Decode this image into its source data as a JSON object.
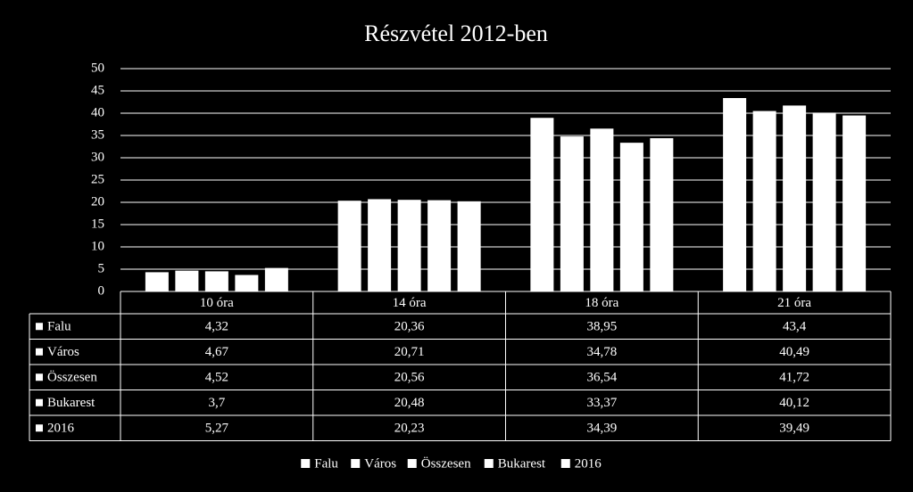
{
  "chart_data": {
    "type": "bar",
    "title": "Részvétel 2012-ben",
    "categories": [
      "10 óra",
      "14 óra",
      "18 óra",
      "21 óra"
    ],
    "series": [
      {
        "name": "Falu",
        "color": "#ffffff",
        "values": [
          4.32,
          20.36,
          38.95,
          43.4
        ],
        "value_labels": [
          "4,32",
          "20,36",
          "38,95",
          "43,4"
        ]
      },
      {
        "name": "Város",
        "color": "#ffffff",
        "values": [
          4.67,
          20.71,
          34.78,
          40.49
        ],
        "value_labels": [
          "4,67",
          "20,71",
          "34,78",
          "40,49"
        ]
      },
      {
        "name": "Összesen",
        "color": "#ffffff",
        "values": [
          4.52,
          20.56,
          36.54,
          41.72
        ],
        "value_labels": [
          "4,52",
          "20,56",
          "36,54",
          "41,72"
        ]
      },
      {
        "name": "Bukarest",
        "color": "#ffffff",
        "values": [
          3.7,
          20.48,
          33.37,
          40.12
        ],
        "value_labels": [
          "3,7",
          "20,48",
          "33,37",
          "40,12"
        ]
      },
      {
        "name": "2016",
        "color": "#ffffff",
        "values": [
          5.27,
          20.23,
          34.39,
          39.49
        ],
        "value_labels": [
          "5,27",
          "20,23",
          "34,39",
          "39,49"
        ]
      }
    ],
    "ylim": [
      0,
      50
    ],
    "yticks": [
      0,
      5,
      10,
      15,
      20,
      25,
      30,
      35,
      40,
      45,
      50
    ],
    "grid": true,
    "legend": "bottom"
  }
}
